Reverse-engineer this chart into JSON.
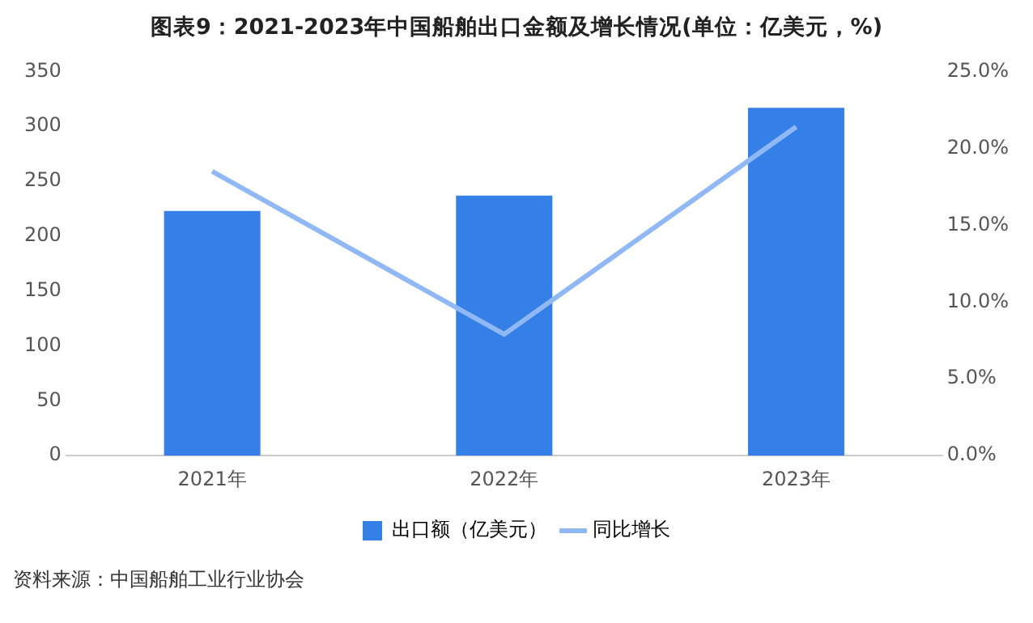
{
  "chart_data": {
    "type": "bar",
    "title": "图表9：2021-2023年中国船舶出口金额及增长情况(单位：亿美元，%)",
    "categories": [
      "2021年",
      "2022年",
      "2023年"
    ],
    "series": [
      {
        "name": "出口额（亿美元）",
        "color": "#3580e6",
        "values": [
          223,
          237,
          317
        ]
      },
      {
        "name": "同比增长",
        "type": "line",
        "axis": "y2",
        "color": "#8fb8f5",
        "values": [
          18.5,
          7.9,
          21.4
        ]
      }
    ],
    "ylim": [
      0,
      350
    ],
    "yticks": [
      0,
      50,
      100,
      150,
      200,
      250,
      300,
      350
    ],
    "y2lim": [
      0,
      25
    ],
    "y2ticks": [
      {
        "value": 0,
        "label": "0.0%"
      },
      {
        "value": 5,
        "label": "5.0%"
      },
      {
        "value": 10,
        "label": "10.0%"
      },
      {
        "value": 15,
        "label": "15.0%"
      },
      {
        "value": 20,
        "label": "20.0%"
      },
      {
        "value": 25,
        "label": "25.0%"
      }
    ],
    "grid": false,
    "legend": "bottom",
    "marker": "none",
    "annotations": [
      "资料来源：中国船舶工业行业协会"
    ]
  }
}
